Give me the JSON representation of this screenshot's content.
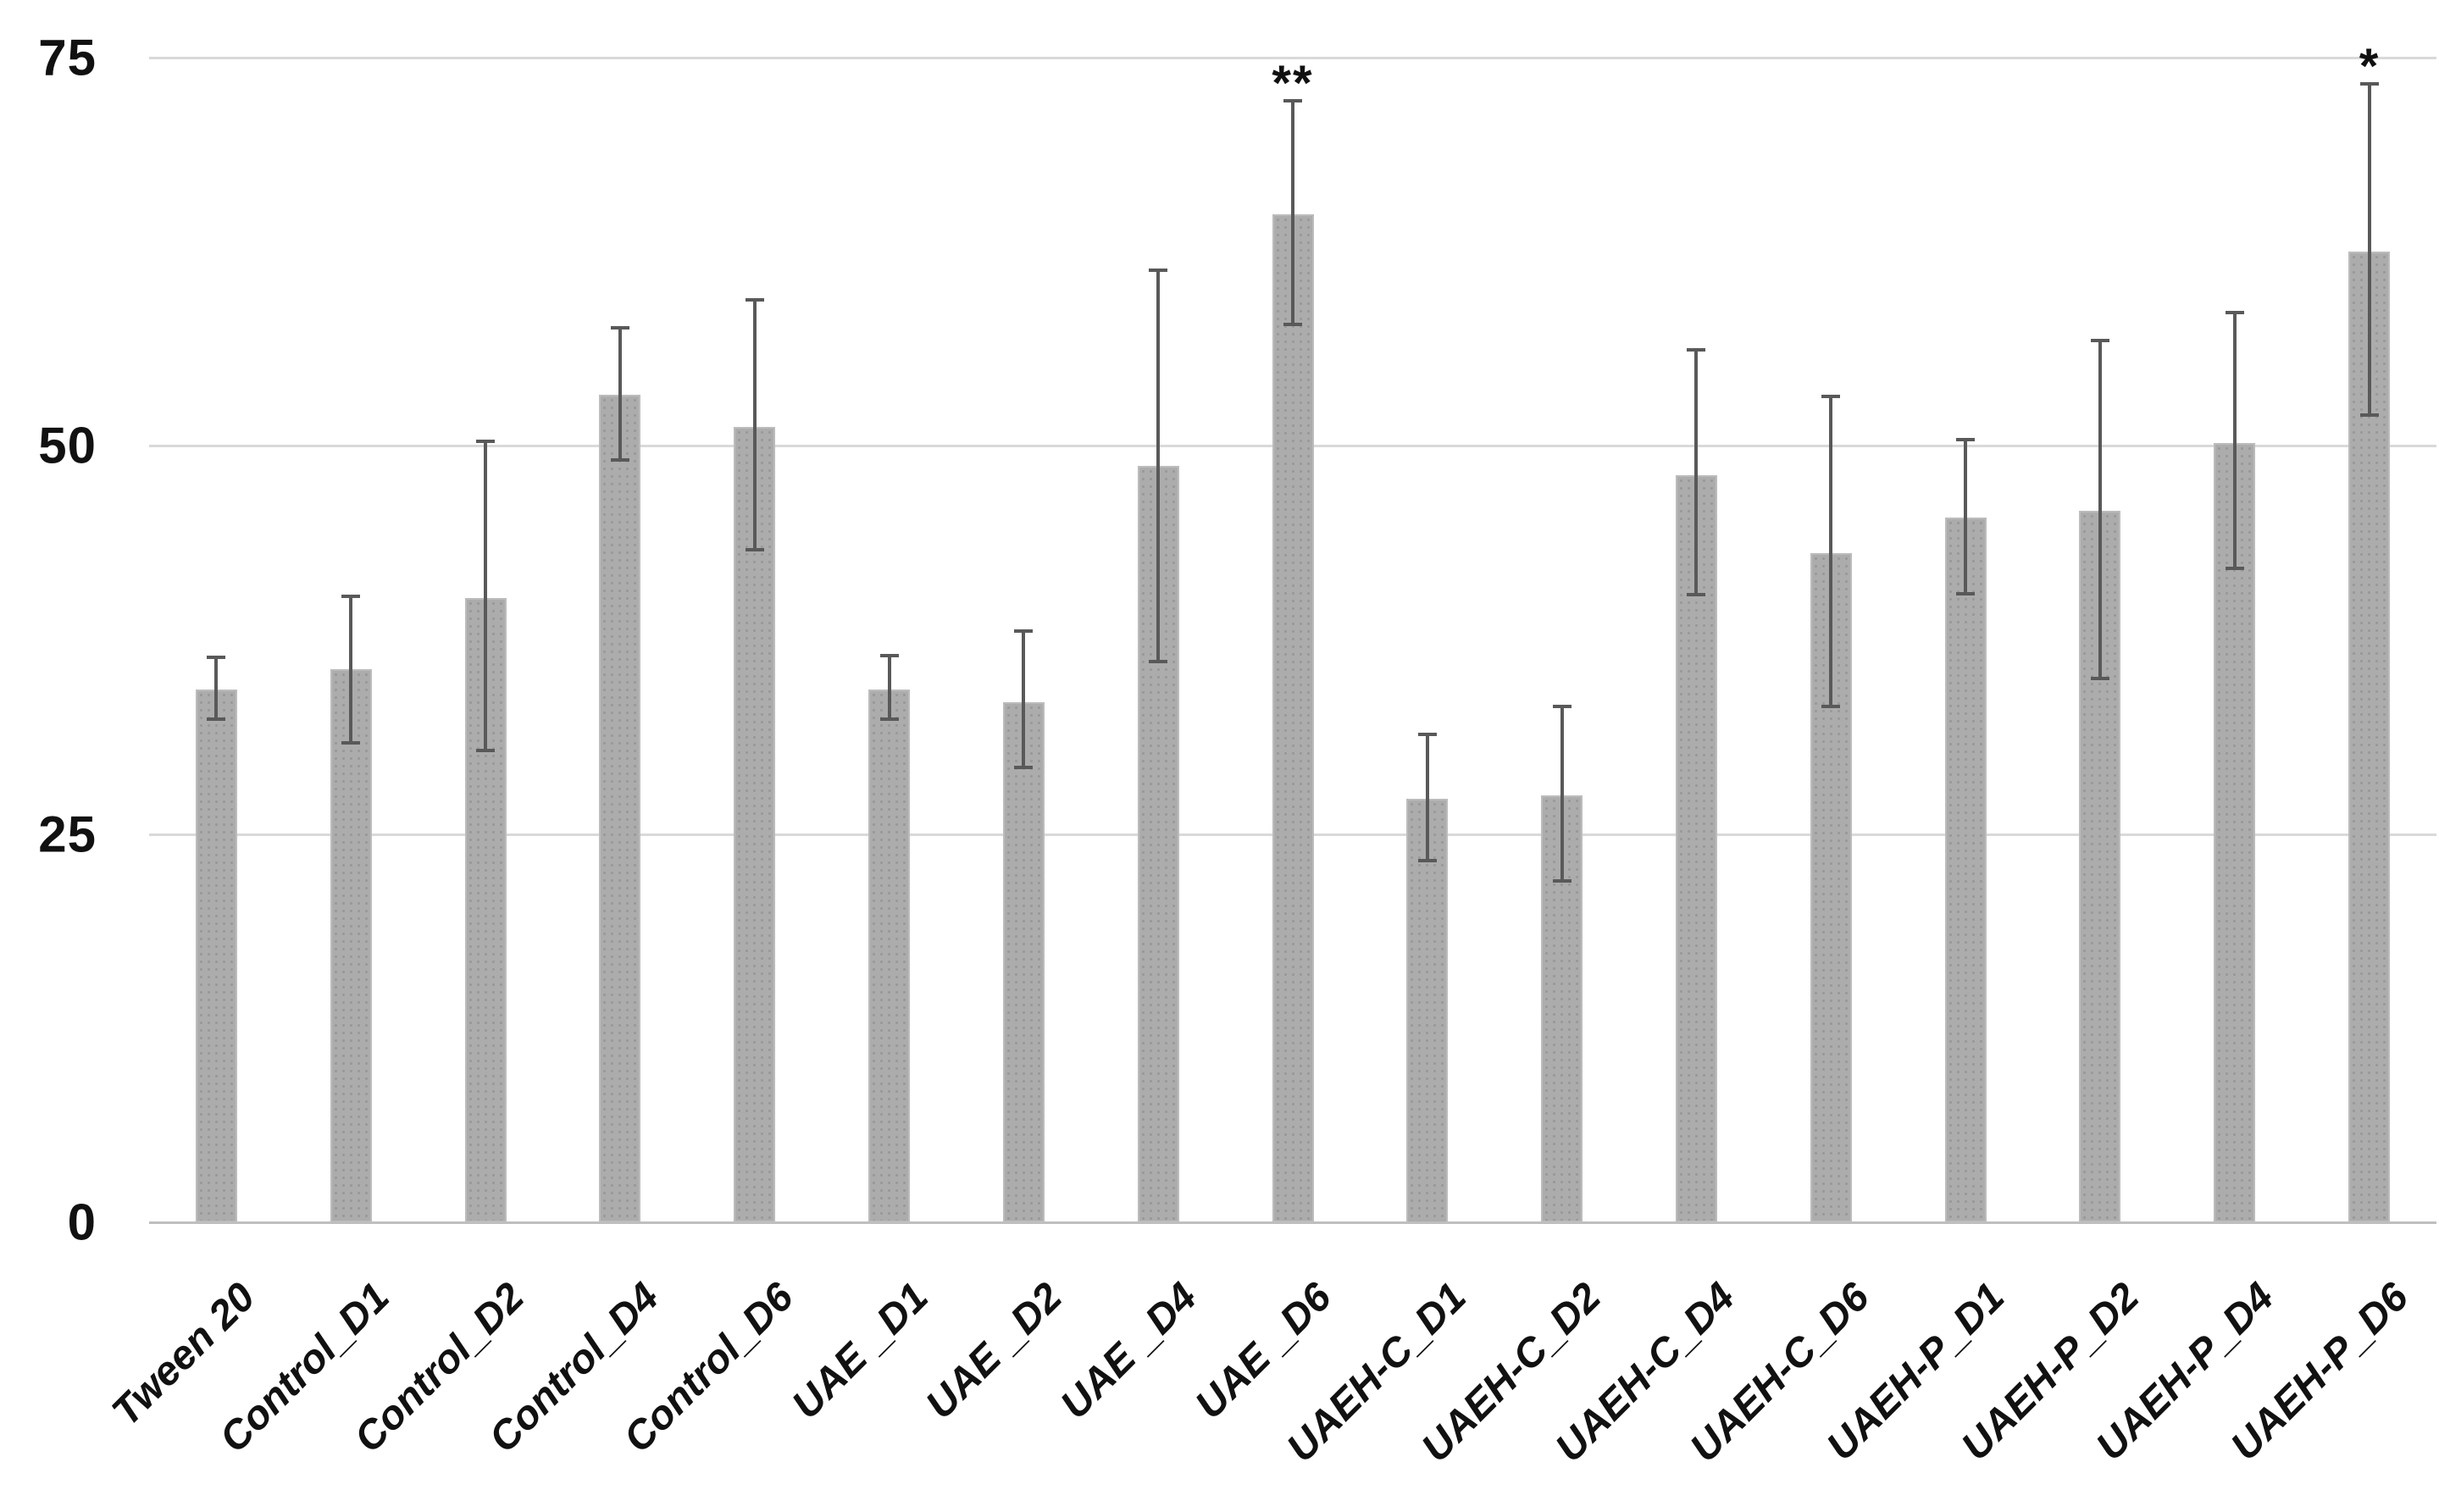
{
  "chart_data": {
    "type": "bar",
    "title": "",
    "xlabel": "",
    "ylabel": "",
    "categories": [
      "Tween 20",
      "Control_D1",
      "Control_D2",
      "Control_D4",
      "Control_D6",
      "UAE _D1",
      "UAE _D2",
      "UAE _D4",
      "UAE _D6",
      "UAEH-C_D1",
      "UAEH-C_D2",
      "UAEH-C_D4",
      "UAEH-C_D6",
      "UAEH-P_D1",
      "UAEH-P_D2",
      "UAEH-P_D4",
      "UAEH-P_D6"
    ],
    "values": [
      34.3,
      35.6,
      40.2,
      53.3,
      51.2,
      34.3,
      33.5,
      48.7,
      64.9,
      27.3,
      27.5,
      48.1,
      43.1,
      45.4,
      45.8,
      50.2,
      62.5
    ],
    "error_plus": [
      2.1,
      4.7,
      10.1,
      4.3,
      8.2,
      2.2,
      4.6,
      12.6,
      7.3,
      4.1,
      5.7,
      8.1,
      10.1,
      5.0,
      11.0,
      8.4,
      10.8
    ],
    "error_minus": [
      1.9,
      4.7,
      9.8,
      4.2,
      7.9,
      1.9,
      4.2,
      12.6,
      7.1,
      4.0,
      5.5,
      7.7,
      9.9,
      4.9,
      10.8,
      8.1,
      10.5
    ],
    "significance": [
      "",
      "",
      "",
      "",
      "",
      "",
      "",
      "",
      "**",
      "",
      "",
      "",
      "",
      "",
      "",
      "",
      "*"
    ],
    "yticks": [
      0,
      25,
      50,
      75
    ],
    "ylim": [
      0,
      75
    ],
    "grid": "horizontal gridlines at y ticks",
    "legend": "none",
    "bar_color": "#acacac",
    "bar_border_color": "#bcbcbc",
    "error_color": "#595959",
    "gridline_color": "#d9d9d9",
    "axis_line_color": "#bfbfbf",
    "text_color": "#111111"
  }
}
